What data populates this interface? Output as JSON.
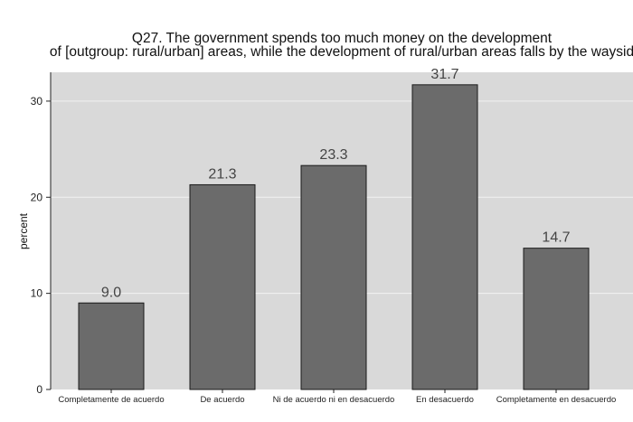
{
  "chart_data": {
    "type": "bar",
    "title_lines": [
      "Q27. The government spends too much money on the development",
      "of [outgroup: rural/urban] areas, while the development of rural/urban areas falls by the waysid"
    ],
    "xlabel": "",
    "ylabel": "percent",
    "categories": [
      "Completamente de acuerdo",
      "De acuerdo",
      "Ni de acuerdo ni en desacuerdo",
      "En desacuerdo",
      "Completamente en desacuerdo"
    ],
    "values": [
      9.0,
      21.3,
      23.3,
      31.7,
      14.7
    ],
    "data_labels": [
      "9.0",
      "21.3",
      "23.3",
      "31.7",
      "14.7"
    ],
    "yticks": [
      0,
      10,
      20,
      30
    ],
    "ytick_labels": [
      "0",
      "10",
      "20",
      "30"
    ],
    "ylim": [
      0,
      33
    ],
    "grid": true,
    "legend": "none",
    "colors": {
      "plot_background": "#d9d9d9",
      "bar_fill": "#6b6b6b",
      "bar_stroke": "#1a1a1a",
      "gridline": "#f2f2f2",
      "axis": "#222222"
    }
  }
}
